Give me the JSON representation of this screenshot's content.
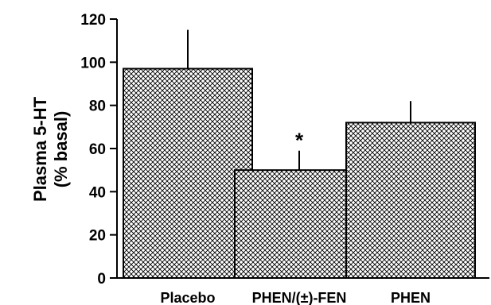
{
  "chart_data": {
    "type": "bar",
    "title": "",
    "xlabel": "",
    "ylabel_lines": [
      "Plasma 5-HT",
      "(% basal)"
    ],
    "categories": [
      "Placebo",
      "PHEN/(±)-FEN",
      "PHEN"
    ],
    "values": [
      97,
      50,
      72
    ],
    "error_upper": [
      115,
      59,
      82
    ],
    "annotations": [
      "",
      "*",
      ""
    ],
    "ylim": [
      0,
      120
    ],
    "yticks": [
      0,
      20,
      40,
      60,
      80,
      100,
      120
    ],
    "ytick_labels": [
      "0",
      "20",
      "40",
      "60",
      "80",
      "100",
      "120"
    ],
    "grid": false,
    "bar_fill": "crosshatch",
    "bar_color": "#000000"
  }
}
